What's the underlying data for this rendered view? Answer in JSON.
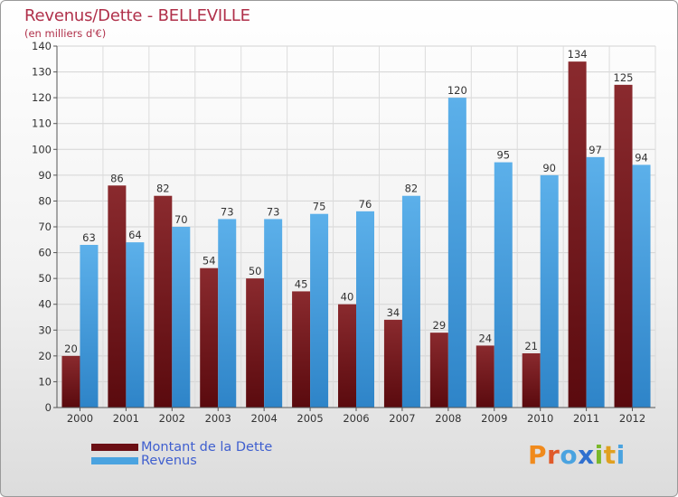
{
  "title": "Revenus/Dette - BELLEVILLE",
  "subtitle": "(en milliers d'€)",
  "colors": {
    "debt": "#7a1a1e",
    "revenue": "#4aa3e0",
    "title": "#b0304a",
    "legend_text": "#3f5fcf"
  },
  "legend": [
    {
      "label": "Montant de la Dette",
      "color": "#6b0f14"
    },
    {
      "label": "Revenus",
      "color": "#4aa3e0"
    }
  ],
  "logo": {
    "text": "Proxiti",
    "letter_colors": [
      "#f08a1c",
      "#e05a2a",
      "#4aa3e0",
      "#2f6fcf",
      "#7ab82a",
      "#e0a020",
      "#4aa3e0"
    ]
  },
  "chart_data": {
    "type": "bar",
    "title": "Revenus/Dette - BELLEVILLE",
    "subtitle": "(en milliers d'€)",
    "categories": [
      "2000",
      "2001",
      "2002",
      "2003",
      "2004",
      "2005",
      "2006",
      "2007",
      "2008",
      "2009",
      "2010",
      "2011",
      "2012"
    ],
    "series": [
      {
        "name": "Montant de la Dette",
        "values": [
          20,
          86,
          82,
          54,
          50,
          45,
          40,
          34,
          29,
          24,
          21,
          134,
          125
        ]
      },
      {
        "name": "Revenus",
        "values": [
          63,
          64,
          70,
          73,
          73,
          75,
          76,
          82,
          120,
          95,
          90,
          97,
          94
        ]
      }
    ],
    "ylim": [
      0,
      140
    ],
    "yticks": [
      0,
      10,
      20,
      30,
      40,
      50,
      60,
      70,
      80,
      90,
      100,
      110,
      120,
      130,
      140
    ],
    "grid": true,
    "legend_position": "bottom-left",
    "data_labels": true
  }
}
